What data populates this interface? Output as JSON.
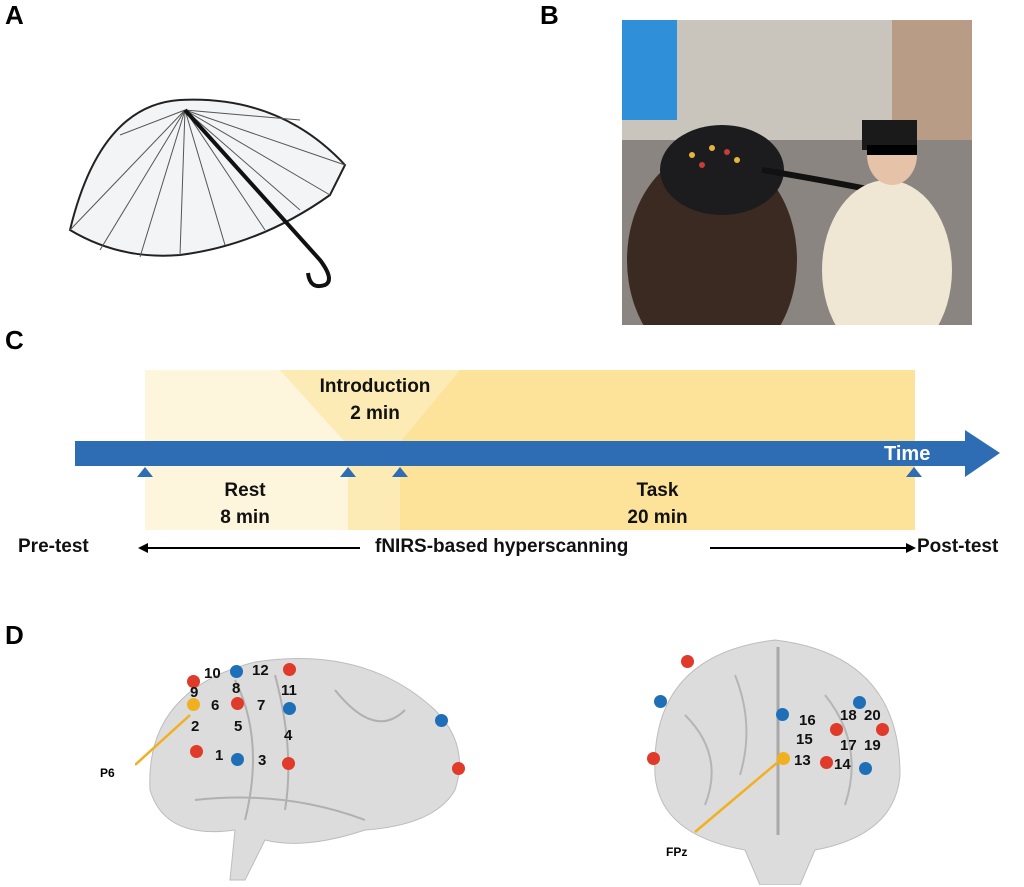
{
  "panels": {
    "a": "A",
    "b": "B",
    "c": "C",
    "d": "D"
  },
  "timeline": {
    "intro_title": "Introduction",
    "intro_dur": "2 min",
    "rest_title": "Rest",
    "rest_dur": "8 min",
    "task_title": "Task",
    "task_dur": "20 min",
    "axis_label": "Time",
    "pre": "Pre-test",
    "middle": "fNIRS-based hyperscanning",
    "post": "Post-test",
    "colors": {
      "bar": "#2e6db4",
      "rest": "#fdf5dc",
      "intro": "#fcebb5",
      "task": "#fde39a"
    }
  },
  "brain": {
    "lateral_ref": "P6",
    "frontal_ref": "FPz",
    "channels": [
      "1",
      "2",
      "3",
      "4",
      "5",
      "6",
      "7",
      "8",
      "9",
      "10",
      "11",
      "12",
      "13",
      "14",
      "15",
      "16",
      "17",
      "18",
      "19",
      "20"
    ],
    "colors": {
      "source": "#e03a2a",
      "detector": "#1f6fb8",
      "reference": "#f0b020"
    }
  }
}
